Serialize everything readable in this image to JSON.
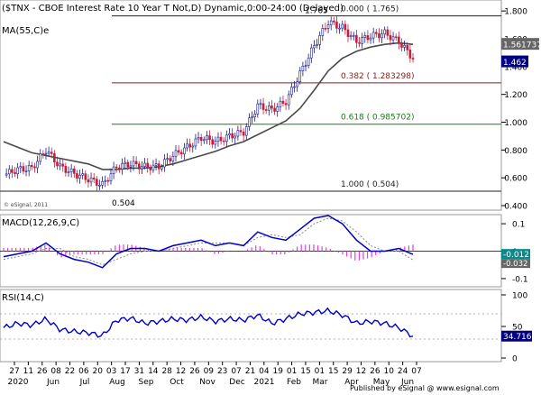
{
  "price_panel": {
    "title": "($TNX - CBOE Interest Rate 10 Year T Not,D) Dynamic,0:00-24:00 (Delayed)",
    "ma_label": "MA(55,C)e",
    "watermark": "© eSignal, 2011",
    "y_ticks": [
      0.4,
      0.6,
      0.8,
      1.0,
      1.2,
      1.4,
      1.6,
      1.8
    ],
    "ylim": [
      0.4,
      1.84
    ],
    "last_close": "1.462",
    "ma_value": "1.561737",
    "fib_levels": [
      {
        "label": "0.000 ( 1.765)",
        "value": 1.765,
        "color": "#222222"
      },
      {
        "label": "0.382 ( 1.283298)",
        "value": 1.283298,
        "color": "#8b1a1a"
      },
      {
        "label": "0.618 ( 0.985702)",
        "value": 0.985702,
        "color": "#1b7a1b"
      },
      {
        "label": "1.000 ( 0.504)",
        "value": 0.504,
        "color": "#222222"
      }
    ],
    "high_label": "1.765",
    "low_label": "0.504"
  },
  "macd_panel": {
    "label": "MACD(12,26,9,C)",
    "y_ticks": [
      "0.1",
      "0",
      "-0.1"
    ],
    "macd_value": "-0.012",
    "signal_value": "-0.032"
  },
  "rsi_panel": {
    "label": "RSI(14,C)",
    "y_ticks": [
      "100",
      "50",
      "0"
    ],
    "value": "34.716"
  },
  "x_axis": {
    "day_labels": [
      "27",
      "11",
      "26",
      "08",
      "22",
      "06",
      "20",
      "03",
      "17",
      "31",
      "14",
      "28",
      "12",
      "26",
      "09",
      "23",
      "07",
      "21",
      "04",
      "19",
      "01",
      "15",
      "01",
      "15",
      "29",
      "12",
      "26",
      "10",
      "24",
      "07"
    ],
    "month_labels": [
      "2020",
      "Jun",
      "Jul",
      "Aug",
      "Sep",
      "Oct",
      "Nov",
      "Dec",
      "2021",
      "Feb",
      "Mar",
      "Apr",
      "May",
      "Jun"
    ]
  },
  "footer": "Published by eSignal   @ www.esignal.com",
  "chart_data": [
    {
      "type": "candlestick",
      "title": "($TNX - CBOE Interest Rate 10 Year T Not,D) Dynamic,0:00-24:00 (Delayed)",
      "ylim": [
        0.4,
        1.84
      ],
      "x": [
        "2020-04-27",
        "2020-05-11",
        "2020-05-26",
        "2020-06-08",
        "2020-06-22",
        "2020-07-06",
        "2020-07-20",
        "2020-08-03",
        "2020-08-17",
        "2020-08-31",
        "2020-09-14",
        "2020-09-28",
        "2020-10-12",
        "2020-10-26",
        "2020-11-09",
        "2020-11-23",
        "2020-12-07",
        "2020-12-21",
        "2021-01-04",
        "2021-01-19",
        "2021-02-01",
        "2021-02-15",
        "2021-03-01",
        "2021-03-15",
        "2021-03-29",
        "2021-04-12",
        "2021-04-26",
        "2021-05-10",
        "2021-05-24",
        "2021-06-07"
      ],
      "close": [
        0.62,
        0.66,
        0.67,
        0.8,
        0.68,
        0.63,
        0.59,
        0.55,
        0.68,
        0.7,
        0.68,
        0.68,
        0.76,
        0.82,
        0.89,
        0.86,
        0.9,
        0.93,
        1.12,
        1.09,
        1.15,
        1.35,
        1.55,
        1.72,
        1.68,
        1.58,
        1.62,
        1.64,
        1.58,
        1.46
      ],
      "ma55": [
        0.86,
        0.82,
        0.78,
        0.76,
        0.74,
        0.72,
        0.7,
        0.66,
        0.66,
        0.67,
        0.67,
        0.68,
        0.7,
        0.73,
        0.76,
        0.79,
        0.83,
        0.86,
        0.91,
        0.96,
        1.01,
        1.1,
        1.23,
        1.37,
        1.46,
        1.51,
        1.54,
        1.56,
        1.57,
        1.56
      ],
      "fib_levels": [
        1.765,
        1.283298,
        0.985702,
        0.504
      ]
    },
    {
      "type": "line",
      "title": "MACD(12,26,9,C)",
      "ylim": [
        -0.12,
        0.12
      ],
      "series": [
        {
          "values": [
            -0.02,
            -0.01,
            0.0,
            0.03,
            -0.01,
            -0.03,
            -0.04,
            -0.06,
            -0.01,
            0.01,
            0.01,
            0.0,
            0.02,
            0.03,
            0.04,
            0.02,
            0.03,
            0.02,
            0.07,
            0.05,
            0.04,
            0.08,
            0.12,
            0.13,
            0.1,
            0.04,
            0.0,
            0.0,
            0.01,
            -0.012
          ]
        },
        {
          "values": [
            -0.03,
            -0.02,
            -0.01,
            0.01,
            0.01,
            -0.02,
            -0.03,
            -0.05,
            -0.03,
            -0.01,
            0.0,
            0.0,
            0.01,
            0.02,
            0.03,
            0.03,
            0.03,
            0.02,
            0.05,
            0.06,
            0.05,
            0.06,
            0.1,
            0.12,
            0.11,
            0.07,
            0.02,
            0.0,
            0.0,
            -0.032
          ]
        }
      ]
    },
    {
      "type": "line",
      "title": "RSI(14,C)",
      "ylim": [
        0,
        100
      ],
      "series": [
        {
          "values": [
            48,
            55,
            52,
            62,
            45,
            42,
            40,
            35,
            60,
            63,
            55,
            58,
            62,
            60,
            65,
            58,
            62,
            60,
            68,
            55,
            62,
            70,
            72,
            75,
            68,
            55,
            58,
            55,
            48,
            34.716
          ]
        }
      ]
    }
  ]
}
